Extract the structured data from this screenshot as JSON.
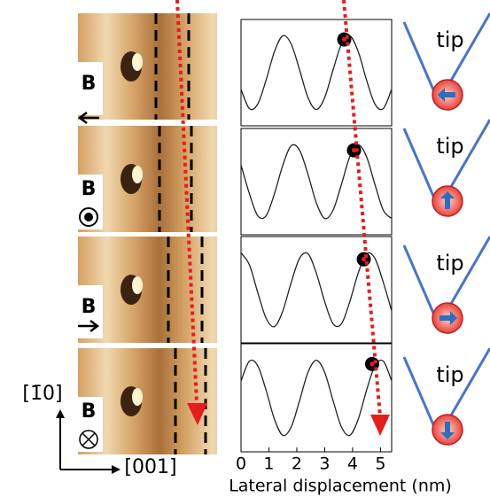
{
  "chart_data": [
    {
      "type": "line",
      "x": [
        0,
        0.3,
        0.6,
        0.9,
        1.2,
        1.5,
        1.8,
        2.1,
        2.4,
        2.7,
        3.0,
        3.3,
        3.6,
        3.9,
        4.2,
        4.5,
        4.8,
        5.1,
        5.4
      ],
      "values": [
        0.32,
        0.11,
        0.16,
        0.42,
        0.73,
        0.9,
        0.81,
        0.53,
        0.23,
        0.1,
        0.23,
        0.53,
        0.81,
        0.9,
        0.73,
        0.42,
        0.16,
        0.11,
        0.32
      ],
      "color": "#222222",
      "xlim": [
        0,
        5.4
      ],
      "ylim": [
        0,
        1
      ],
      "marker": {
        "x": 3.7,
        "y": 0.86
      }
    },
    {
      "type": "line",
      "x": [
        0,
        0.3,
        0.6,
        0.9,
        1.2,
        1.5,
        1.8,
        2.1,
        2.4,
        2.7,
        3.0,
        3.3,
        3.6,
        3.9,
        4.2,
        4.5,
        4.8,
        5.1,
        5.4
      ],
      "values": [
        0.68,
        0.37,
        0.13,
        0.13,
        0.37,
        0.68,
        0.89,
        0.84,
        0.58,
        0.27,
        0.1,
        0.19,
        0.47,
        0.77,
        0.9,
        0.77,
        0.47,
        0.19,
        0.1
      ],
      "color": "#222222",
      "xlim": [
        0,
        5.4
      ],
      "ylim": [
        0,
        1
      ],
      "marker": {
        "x": 4.05,
        "y": 0.84
      }
    },
    {
      "type": "line",
      "x": [
        0,
        0.3,
        0.6,
        0.9,
        1.2,
        1.5,
        1.8,
        2.1,
        2.4,
        2.7,
        3.0,
        3.3,
        3.6,
        3.9,
        4.2,
        4.5,
        4.8,
        5.1,
        5.4
      ],
      "values": [
        0.9,
        0.77,
        0.47,
        0.19,
        0.1,
        0.27,
        0.58,
        0.84,
        0.89,
        0.68,
        0.37,
        0.13,
        0.13,
        0.37,
        0.68,
        0.89,
        0.84,
        0.58,
        0.27
      ],
      "color": "#222222",
      "xlim": [
        0,
        5.4
      ],
      "ylim": [
        0,
        1
      ],
      "marker": {
        "x": 4.4,
        "y": 0.83
      }
    },
    {
      "type": "line",
      "x": [
        0,
        0.3,
        0.6,
        0.9,
        1.2,
        1.5,
        1.8,
        2.1,
        2.4,
        2.7,
        3.0,
        3.3,
        3.6,
        3.9,
        4.2,
        4.5,
        4.8,
        5.1,
        5.4
      ],
      "values": [
        0.68,
        0.89,
        0.84,
        0.58,
        0.27,
        0.1,
        0.19,
        0.47,
        0.77,
        0.9,
        0.77,
        0.47,
        0.19,
        0.1,
        0.27,
        0.58,
        0.84,
        0.89,
        0.68
      ],
      "color": "#222222",
      "xlim": [
        0,
        5.4
      ],
      "ylim": [
        0,
        1
      ],
      "marker": {
        "x": 4.7,
        "y": 0.86
      },
      "xticks": [
        0,
        1,
        2,
        3,
        4,
        5
      ],
      "xlabel": "Lateral displacement (nm)"
    }
  ],
  "stm_labels": [
    "B",
    "B",
    "B",
    "B"
  ],
  "tip_labels": [
    "tip",
    "tip",
    "tip",
    "tip"
  ],
  "axes": {
    "vertical": "[1̄0]",
    "horizontal": "[001]"
  }
}
